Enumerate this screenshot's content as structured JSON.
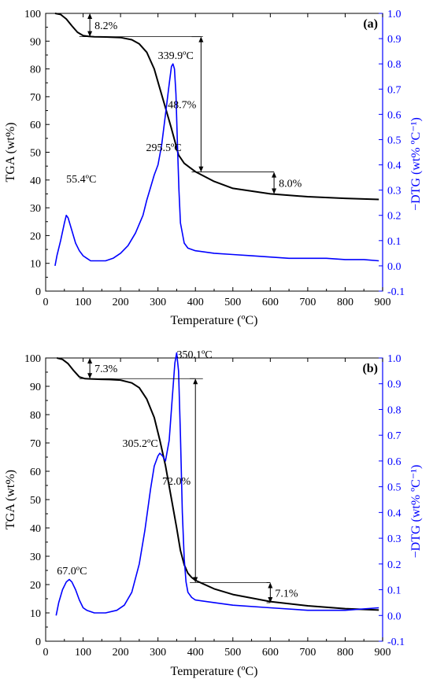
{
  "colors": {
    "tga": "#000000",
    "dtg": "#0000ff",
    "axis": "#000000"
  },
  "chart_data": [
    {
      "panel": "(a)",
      "type": "line",
      "xlabel": "Temperature (ºC)",
      "ylabel_left": "TGA (wt%)",
      "ylabel_right": "−DTG (wt% ºC⁻¹)",
      "xlim": [
        0,
        900
      ],
      "ylim_left": [
        0,
        100
      ],
      "ylim_right": [
        -0.1,
        1.0
      ],
      "xticks": [
        0,
        100,
        200,
        300,
        400,
        500,
        600,
        700,
        800,
        900
      ],
      "yticks_left": [
        0,
        10,
        20,
        30,
        40,
        50,
        60,
        70,
        80,
        90,
        100
      ],
      "yticks_right": [
        -0.1,
        0.0,
        0.1,
        0.2,
        0.3,
        0.4,
        0.5,
        0.6,
        0.7,
        0.8,
        0.9,
        1.0
      ],
      "series": [
        {
          "axis": "left",
          "x": [
            25,
            40,
            55,
            70,
            85,
            100,
            115,
            130,
            160,
            200,
            230,
            250,
            270,
            290,
            305,
            320,
            335,
            345,
            355,
            370,
            385,
            400,
            450,
            500,
            600,
            700,
            800,
            890
          ],
          "y": [
            100,
            99.6,
            98,
            95.5,
            93.2,
            92,
            91.7,
            91.6,
            91.5,
            91.3,
            90.5,
            89,
            86,
            80,
            73,
            66,
            59,
            54,
            49,
            46,
            44.5,
            43,
            39.5,
            37,
            35,
            34,
            33.4,
            33
          ]
        },
        {
          "axis": "right",
          "x": [
            25,
            30,
            40,
            50,
            55,
            60,
            70,
            80,
            90,
            100,
            110,
            120,
            140,
            160,
            180,
            200,
            220,
            240,
            260,
            270,
            280,
            290,
            295,
            300,
            310,
            320,
            330,
            336,
            340,
            344,
            348,
            352,
            356,
            360,
            370,
            380,
            400,
            450,
            500,
            550,
            600,
            650,
            700,
            750,
            800,
            850,
            890
          ],
          "y": [
            0.0,
            0.04,
            0.1,
            0.17,
            0.2,
            0.19,
            0.14,
            0.09,
            0.06,
            0.04,
            0.03,
            0.02,
            0.02,
            0.02,
            0.03,
            0.05,
            0.08,
            0.13,
            0.2,
            0.26,
            0.31,
            0.36,
            0.38,
            0.4,
            0.48,
            0.6,
            0.72,
            0.79,
            0.8,
            0.78,
            0.68,
            0.48,
            0.3,
            0.17,
            0.09,
            0.07,
            0.06,
            0.05,
            0.045,
            0.04,
            0.035,
            0.03,
            0.03,
            0.03,
            0.025,
            0.025,
            0.02
          ]
        }
      ],
      "annotations": [
        "55.4ºC",
        "295.5ºC",
        "339.9ºC",
        "8.2%",
        "48.7%",
        "8.0%"
      ]
    },
    {
      "panel": "(b)",
      "type": "line",
      "xlabel": "Temperature (ºC)",
      "ylabel_left": "TGA (wt%)",
      "ylabel_right": "−DTG (wt% ºC⁻¹)",
      "xlim": [
        0,
        900
      ],
      "ylim_left": [
        0,
        100
      ],
      "ylim_right": [
        -0.1,
        1.0
      ],
      "xticks": [
        0,
        100,
        200,
        300,
        400,
        500,
        600,
        700,
        800,
        900
      ],
      "yticks_left": [
        0,
        10,
        20,
        30,
        40,
        50,
        60,
        70,
        80,
        90,
        100
      ],
      "yticks_right": [
        -0.1,
        0.0,
        0.1,
        0.2,
        0.3,
        0.4,
        0.5,
        0.6,
        0.7,
        0.8,
        0.9,
        1.0
      ],
      "series": [
        {
          "axis": "left",
          "x": [
            30,
            45,
            60,
            75,
            90,
            105,
            120,
            140,
            170,
            200,
            230,
            250,
            270,
            290,
            305,
            320,
            335,
            350,
            360,
            370,
            380,
            390,
            400,
            450,
            500,
            600,
            700,
            800,
            890
          ],
          "y": [
            100,
            99.5,
            98,
            95.5,
            93.3,
            92.7,
            92.6,
            92.5,
            92.4,
            92.2,
            91.2,
            89.5,
            85.5,
            79,
            71,
            62,
            51,
            40,
            32,
            27,
            24,
            22.5,
            21.5,
            18.5,
            16.5,
            14,
            12.5,
            11.5,
            11
          ]
        },
        {
          "axis": "right",
          "x": [
            28,
            35,
            45,
            55,
            63,
            70,
            80,
            90,
            100,
            110,
            130,
            160,
            190,
            210,
            230,
            250,
            265,
            280,
            290,
            300,
            305,
            312,
            320,
            330,
            338,
            345,
            350,
            355,
            360,
            365,
            370,
            375,
            380,
            390,
            400,
            450,
            500,
            600,
            700,
            800,
            890
          ],
          "y": [
            0.0,
            0.05,
            0.1,
            0.13,
            0.14,
            0.13,
            0.1,
            0.06,
            0.03,
            0.02,
            0.01,
            0.01,
            0.02,
            0.04,
            0.09,
            0.2,
            0.33,
            0.49,
            0.58,
            0.62,
            0.63,
            0.62,
            0.6,
            0.68,
            0.84,
            0.98,
            1.02,
            0.95,
            0.7,
            0.4,
            0.22,
            0.13,
            0.09,
            0.07,
            0.06,
            0.05,
            0.04,
            0.03,
            0.02,
            0.02,
            0.03
          ]
        }
      ],
      "annotations": [
        "67.0ºC",
        "305.2ºC",
        "350.1ºC",
        "7.3%",
        "72.0%",
        "7.1%"
      ]
    }
  ]
}
